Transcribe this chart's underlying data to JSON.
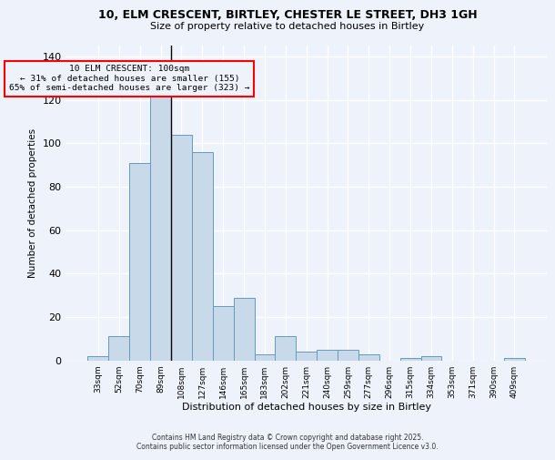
{
  "title_line1": "10, ELM CRESCENT, BIRTLEY, CHESTER LE STREET, DH3 1GH",
  "title_line2": "Size of property relative to detached houses in Birtley",
  "xlabel": "Distribution of detached houses by size in Birtley",
  "ylabel": "Number of detached properties",
  "bar_color": "#c8d9ea",
  "bar_edge_color": "#6699bb",
  "categories": [
    "33sqm",
    "52sqm",
    "70sqm",
    "89sqm",
    "108sqm",
    "127sqm",
    "146sqm",
    "165sqm",
    "183sqm",
    "202sqm",
    "221sqm",
    "240sqm",
    "259sqm",
    "277sqm",
    "296sqm",
    "315sqm",
    "334sqm",
    "353sqm",
    "371sqm",
    "390sqm",
    "409sqm"
  ],
  "values": [
    2,
    11,
    91,
    128,
    104,
    96,
    25,
    29,
    3,
    11,
    4,
    5,
    5,
    3,
    0,
    1,
    2,
    0,
    0,
    0,
    1
  ],
  "ylim": [
    0,
    145
  ],
  "yticks": [
    0,
    20,
    40,
    60,
    80,
    100,
    120,
    140
  ],
  "annotation_line1": "10 ELM CRESCENT: 100sqm",
  "annotation_line2": "← 31% of detached houses are smaller (155)",
  "annotation_line3": "65% of semi-detached houses are larger (323) →",
  "vline_x": 3.5,
  "background_color": "#eef2fb",
  "grid_color": "#ffffff",
  "footer_line1": "Contains HM Land Registry data © Crown copyright and database right 2025.",
  "footer_line2": "Contains public sector information licensed under the Open Government Licence v3.0."
}
